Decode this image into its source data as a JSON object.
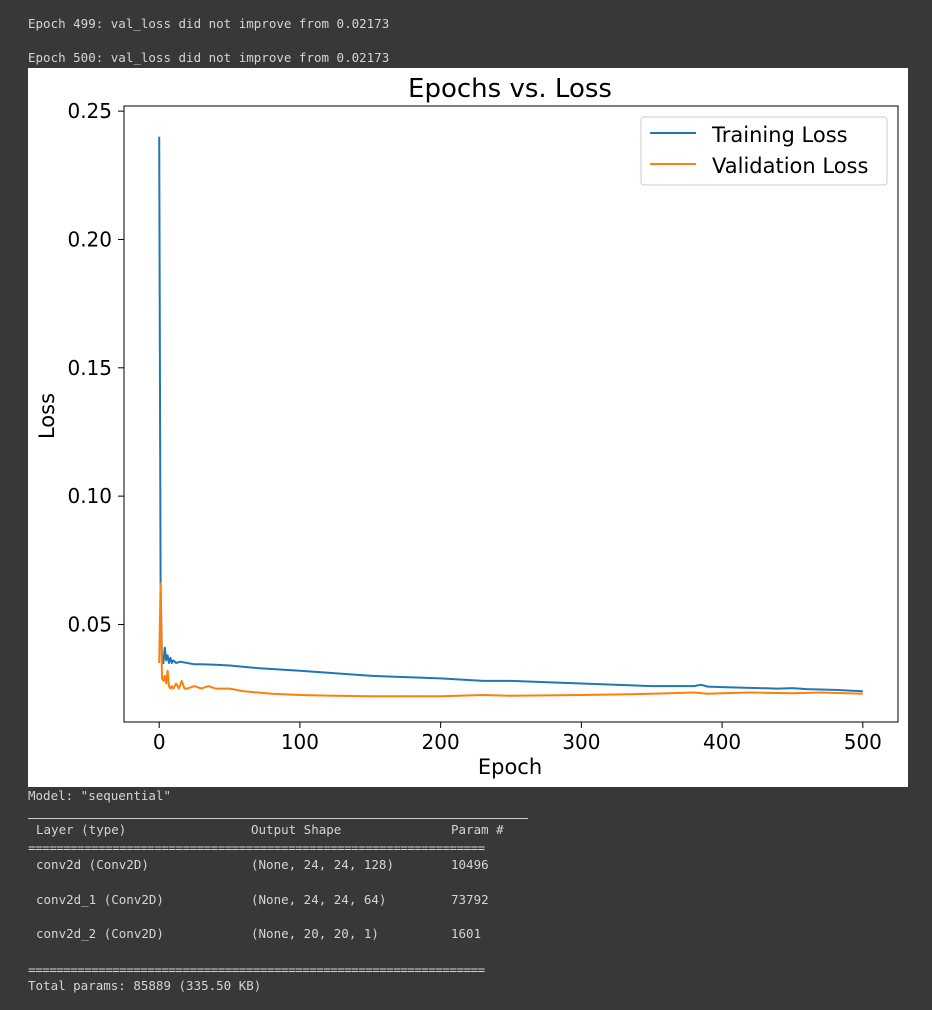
{
  "console": {
    "log_lines": [
      "Epoch 499: val_loss did not improve from 0.02173",
      "Epoch 500: val_loss did not improve from 0.02173"
    ]
  },
  "chart_data": {
    "type": "line",
    "title": "Epochs vs. Loss",
    "xlabel": "Epoch",
    "ylabel": "Loss",
    "xlim": [
      -25,
      525
    ],
    "ylim": [
      0.012,
      0.252
    ],
    "xticks": [
      "0",
      "100",
      "200",
      "300",
      "400",
      "500"
    ],
    "yticks": [
      "0.05",
      "0.10",
      "0.15",
      "0.20",
      "0.25"
    ],
    "grid": false,
    "legend_position": "top-right",
    "series": [
      {
        "name": "Training Loss",
        "color": "#1f77b4",
        "x": [
          0,
          1,
          2,
          3,
          4,
          5,
          6,
          7,
          8,
          9,
          10,
          12,
          15,
          20,
          25,
          30,
          40,
          50,
          70,
          100,
          150,
          200,
          230,
          250,
          300,
          350,
          380,
          385,
          390,
          400,
          440,
          450,
          460,
          480,
          500
        ],
        "y": [
          0.24,
          0.065,
          0.037,
          0.035,
          0.041,
          0.036,
          0.038,
          0.035,
          0.037,
          0.035,
          0.036,
          0.035,
          0.0355,
          0.035,
          0.0345,
          0.0345,
          0.0343,
          0.034,
          0.033,
          0.032,
          0.03,
          0.029,
          0.028,
          0.028,
          0.027,
          0.026,
          0.026,
          0.0265,
          0.0258,
          0.0256,
          0.025,
          0.0252,
          0.0248,
          0.0245,
          0.024
        ]
      },
      {
        "name": "Validation Loss",
        "color": "#ff7f0e",
        "x": [
          0,
          1,
          2,
          3,
          4,
          5,
          6,
          7,
          8,
          9,
          10,
          12,
          14,
          16,
          18,
          20,
          25,
          30,
          35,
          40,
          50,
          60,
          80,
          100,
          120,
          150,
          200,
          230,
          250,
          300,
          350,
          380,
          390,
          400,
          420,
          450,
          470,
          500
        ],
        "y": [
          0.035,
          0.066,
          0.029,
          0.028,
          0.03,
          0.027,
          0.032,
          0.026,
          0.025,
          0.026,
          0.025,
          0.027,
          0.025,
          0.028,
          0.025,
          0.025,
          0.026,
          0.025,
          0.026,
          0.025,
          0.025,
          0.024,
          0.023,
          0.0225,
          0.0223,
          0.022,
          0.022,
          0.0225,
          0.0222,
          0.0225,
          0.023,
          0.0235,
          0.023,
          0.0232,
          0.0235,
          0.0232,
          0.0235,
          0.023
        ]
      }
    ]
  },
  "model_summary": {
    "title": "Model: \"sequential\"",
    "header": {
      "layer": "Layer (type)",
      "shape": "Output Shape",
      "params": "Param #"
    },
    "equals_rule": "=================================================================",
    "rows": [
      {
        "layer": "conv2d (Conv2D)",
        "shape": "(None, 24, 24, 128)",
        "params": "10496"
      },
      {
        "layer": "conv2d_1 (Conv2D)",
        "shape": "(None, 24, 24, 64)",
        "params": "73792"
      },
      {
        "layer": "conv2d_2 (Conv2D)",
        "shape": "(None, 20, 20, 1)",
        "params": "1601"
      }
    ],
    "total": "Total params: 85889 (335.50 KB)"
  }
}
